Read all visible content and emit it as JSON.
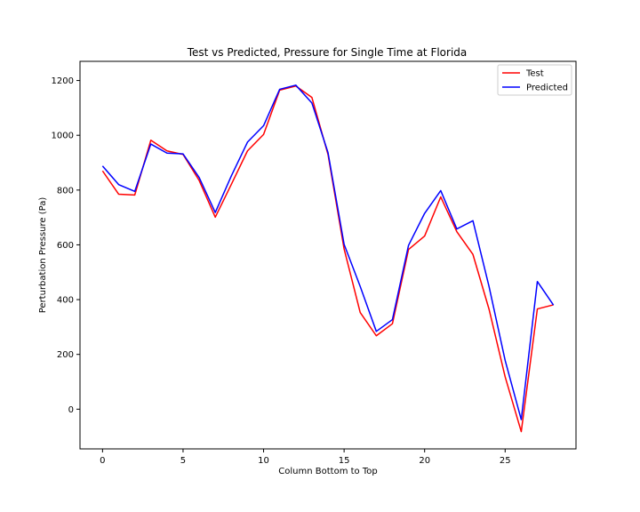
{
  "chart_data": {
    "type": "line",
    "title": "Test vs Predicted, Pressure for Single Time at Florida",
    "xlabel": "Column Bottom to Top",
    "ylabel": "Perturbation Pressure (Pa)",
    "xlim": [
      -1.4,
      29.4
    ],
    "ylim": [
      -145,
      1270
    ],
    "xticks": [
      0,
      5,
      10,
      15,
      20,
      25
    ],
    "yticks": [
      0,
      200,
      400,
      600,
      800,
      1000,
      1200
    ],
    "grid": false,
    "legend_position": "top-right",
    "x": [
      0,
      1,
      2,
      3,
      4,
      5,
      6,
      7,
      8,
      9,
      10,
      11,
      12,
      13,
      14,
      15,
      16,
      17,
      18,
      19,
      20,
      21,
      22,
      23,
      24,
      25,
      26,
      27,
      28
    ],
    "series": [
      {
        "name": "Test",
        "color": "#ff0000",
        "values": [
          870,
          785,
          782,
          982,
          943,
          930,
          835,
          701,
          821,
          943,
          1003,
          1165,
          1180,
          1138,
          930,
          585,
          353,
          268,
          312,
          583,
          632,
          775,
          648,
          565,
          365,
          118,
          -82,
          366,
          381
        ]
      },
      {
        "name": "Predicted",
        "color": "#0000ff",
        "values": [
          888,
          820,
          795,
          968,
          935,
          932,
          846,
          718,
          852,
          975,
          1035,
          1168,
          1183,
          1118,
          937,
          602,
          448,
          284,
          327,
          598,
          715,
          798,
          658,
          688,
          448,
          178,
          -38,
          466,
          380
        ]
      }
    ]
  }
}
